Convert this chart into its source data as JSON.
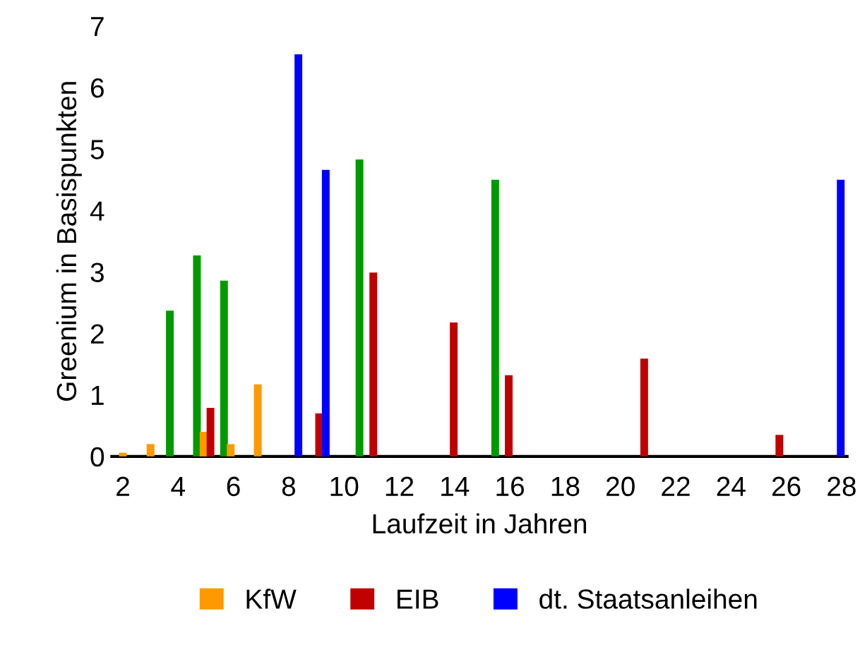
{
  "chart_data": {
    "type": "bar",
    "xlabel": "Laufzeit in Jahren",
    "ylabel": "Greenium in Basispunkten",
    "xlim": [
      1.6,
      28.2
    ],
    "xticks": [
      2,
      4,
      6,
      8,
      10,
      12,
      14,
      16,
      18,
      20,
      22,
      24,
      26,
      28
    ],
    "ylim": [
      0,
      7
    ],
    "yticks": [
      0,
      1,
      2,
      3,
      4,
      5,
      6,
      7
    ],
    "grid": false,
    "legend": "bottom",
    "series": [
      {
        "color": "#009900",
        "x": [
          3.7,
          4.68,
          5.66,
          10.56,
          15.47
        ],
        "values": [
          2.37,
          3.27,
          2.86,
          4.83,
          4.5
        ]
      },
      {
        "name": "KfW",
        "color": "#ff9900",
        "x": [
          2.0,
          3.0,
          4.92,
          5.9,
          6.88
        ],
        "values": [
          0.06,
          0.2,
          0.4,
          0.2,
          1.17
        ]
      },
      {
        "name": "EIB",
        "color": "#c00000",
        "x": [
          5.17,
          9.1,
          11.06,
          13.97,
          15.96,
          20.86,
          25.75
        ],
        "values": [
          0.79,
          0.7,
          2.99,
          2.18,
          1.32,
          1.59,
          0.35
        ]
      },
      {
        "name": "dt. Staatsanleihen",
        "color": "#0000ff",
        "x": [
          8.35,
          9.34,
          27.97
        ],
        "values": [
          6.54,
          4.66,
          4.5
        ]
      }
    ]
  }
}
